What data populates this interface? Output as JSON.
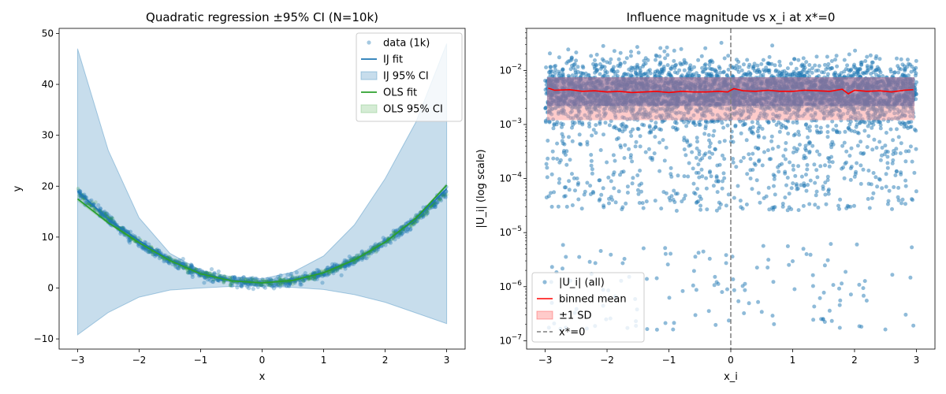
{
  "chart_data": [
    {
      "type": "scatter",
      "title": "Quadratic regression ±95% CI (N=10k)",
      "xlabel": "x",
      "ylabel": "y",
      "xlim": [
        -3.3,
        3.3
      ],
      "ylim": [
        -12,
        51
      ],
      "xticks": [
        -3,
        -2,
        -1,
        0,
        1,
        2,
        3
      ],
      "yticks": [
        -10,
        0,
        10,
        20,
        30,
        40,
        50
      ],
      "grid": false,
      "legend_position": "top-right",
      "series": [
        {
          "name": "data (1k)",
          "kind": "scatter",
          "color": "#1f77b4",
          "alpha": 0.35,
          "model": "y = 2x^2 + 1 + noise",
          "x_range": [
            -3,
            3
          ],
          "count": 1000
        },
        {
          "name": "IJ fit",
          "kind": "line",
          "color": "#1f77b4",
          "x": [
            -3,
            -2.5,
            -2,
            -1.5,
            -1,
            -0.5,
            0,
            0.5,
            1,
            1.5,
            2,
            2.5,
            3
          ],
          "y": [
            19.0,
            13.5,
            9.3,
            5.5,
            2.9,
            1.5,
            1.0,
            1.5,
            3.0,
            5.5,
            9.0,
            13.5,
            19.5
          ]
        },
        {
          "name": "IJ 95% CI",
          "kind": "band",
          "color": "#1f77b4",
          "alpha": 0.25,
          "x": [
            -3,
            -2.5,
            -2,
            -1.5,
            -1,
            -0.5,
            0,
            0.5,
            1,
            1.5,
            2,
            2.5,
            3
          ],
          "lower": [
            -9.2,
            -4.8,
            -1.8,
            -0.4,
            0.0,
            0.3,
            0.4,
            0.1,
            -0.3,
            -1.3,
            -2.8,
            -4.9,
            -7.0
          ],
          "upper": [
            47.0,
            27.0,
            13.8,
            6.8,
            3.5,
            2.2,
            1.8,
            3.1,
            6.3,
            12.4,
            21.5,
            32.6,
            48.0
          ]
        },
        {
          "name": "OLS fit",
          "kind": "line",
          "color": "#2ca02c",
          "x": [
            -3,
            -2.5,
            -2,
            -1.5,
            -1,
            -0.5,
            0,
            0.5,
            1,
            1.5,
            2,
            2.5,
            3
          ],
          "y": [
            17.5,
            12.8,
            8.9,
            5.4,
            2.8,
            1.4,
            1.0,
            1.5,
            3.0,
            5.5,
            9.0,
            13.7,
            20.2
          ]
        },
        {
          "name": "OLS 95% CI",
          "kind": "band",
          "color": "#2ca02c",
          "alpha": 0.2,
          "x": [
            -3,
            -2.5,
            -2,
            -1.5,
            -1,
            -0.5,
            0,
            0.5,
            1,
            1.5,
            2,
            2.5,
            3
          ],
          "lower": [
            17.0,
            12.5,
            8.7,
            5.3,
            2.7,
            1.3,
            0.9,
            1.4,
            2.9,
            5.4,
            8.9,
            13.4,
            19.8
          ],
          "upper": [
            18.0,
            13.1,
            9.1,
            5.5,
            2.9,
            1.5,
            1.1,
            1.6,
            3.1,
            5.6,
            9.1,
            14.0,
            20.6
          ]
        }
      ]
    },
    {
      "type": "scatter",
      "title": "Influence magnitude vs x_i at x*=0",
      "xlabel": "x_i",
      "ylabel": "|U_i| (log scale)",
      "xlim": [
        -3.3,
        3.3
      ],
      "ylim": [
        7e-08,
        0.06
      ],
      "yscale": "log",
      "xticks": [
        -3,
        -2,
        -1,
        0,
        1,
        2,
        3
      ],
      "yticks": [
        "10^-7",
        "10^-6",
        "10^-5",
        "10^-4",
        "10^-3",
        "10^-2"
      ],
      "grid": false,
      "legend_position": "bottom-left",
      "series": [
        {
          "name": "|U_i| (all)",
          "kind": "scatter",
          "color": "#1f77b4",
          "alpha": 0.5,
          "x_range": [
            -3,
            3
          ],
          "count": 10000,
          "typical_value": 0.004
        },
        {
          "name": "binned mean",
          "kind": "line",
          "color": "#ff0000",
          "x": [
            -2.95,
            -2.85,
            -2.6,
            -2.4,
            -2.2,
            -2.0,
            -1.8,
            -1.6,
            -1.4,
            -1.2,
            -1.0,
            -0.8,
            -0.6,
            -0.4,
            -0.2,
            -0.05,
            0.05,
            0.2,
            0.4,
            0.6,
            0.8,
            1.0,
            1.2,
            1.4,
            1.6,
            1.8,
            1.9,
            2.0,
            2.2,
            2.4,
            2.6,
            2.8,
            2.95
          ],
          "y": [
            0.0047,
            0.0043,
            0.0044,
            0.0041,
            0.0042,
            0.004,
            0.0041,
            0.0039,
            0.004,
            0.0041,
            0.0039,
            0.0041,
            0.004,
            0.004,
            0.0041,
            0.004,
            0.0046,
            0.0042,
            0.0041,
            0.0043,
            0.0041,
            0.0041,
            0.0043,
            0.0042,
            0.0041,
            0.0045,
            0.0037,
            0.0043,
            0.0041,
            0.0042,
            0.004,
            0.0043,
            0.0044
          ]
        },
        {
          "name": "±1 SD",
          "kind": "band",
          "color": "#ff9896",
          "alpha": 0.5,
          "lower": 0.0012,
          "upper": 0.0075
        },
        {
          "name": "x*=0",
          "kind": "vline",
          "color": "#7f7f7f",
          "dash": "dashed",
          "x": 0
        }
      ]
    }
  ]
}
